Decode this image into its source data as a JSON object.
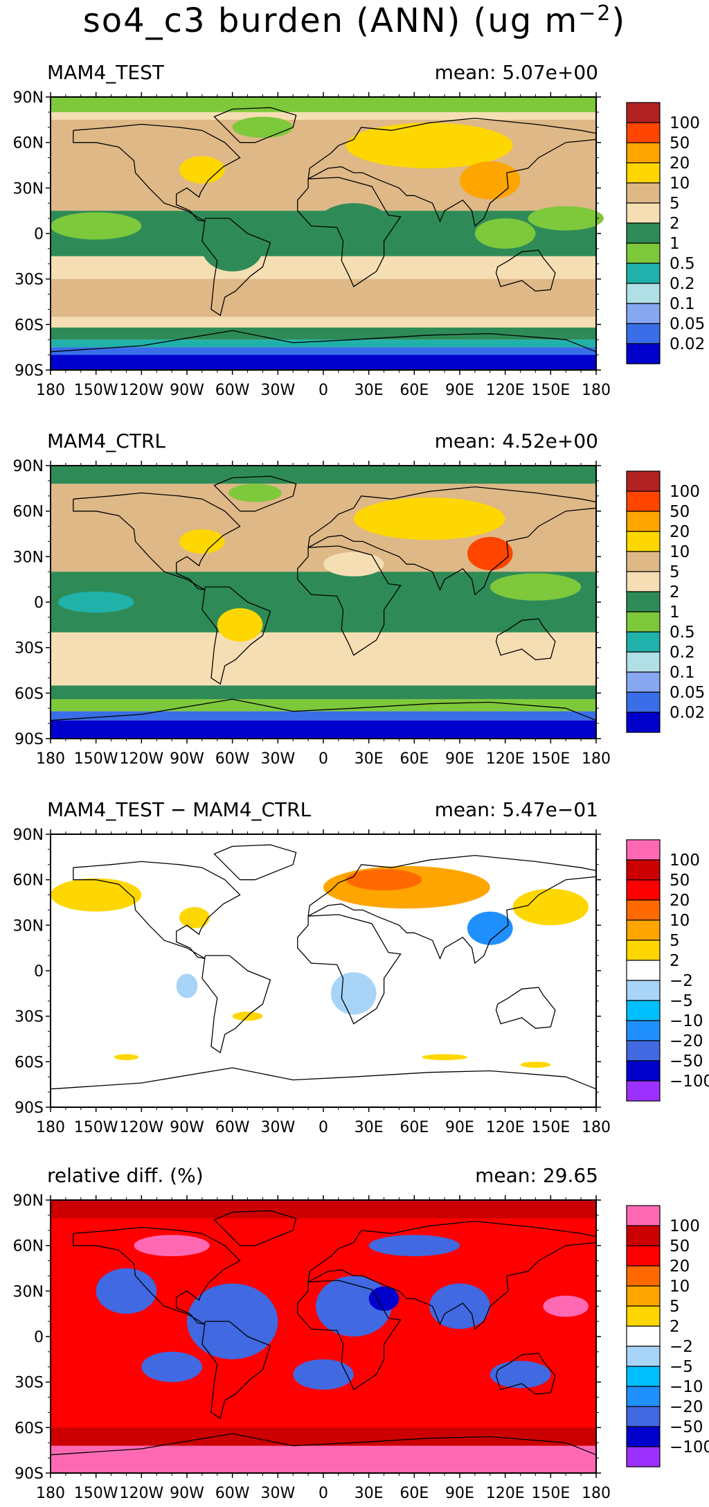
{
  "title": {
    "text": "so4_c3 burden (ANN) (ug m",
    "exponent": "−2",
    "suffix": ")"
  },
  "axes": {
    "lat_labels": [
      "90N",
      "60N",
      "30N",
      "0",
      "30S",
      "60S",
      "90S"
    ],
    "lon_labels": [
      "180",
      "150W",
      "120W",
      "90W",
      "60W",
      "30W",
      "0",
      "30E",
      "60E",
      "90E",
      "120E",
      "150E",
      "180"
    ]
  },
  "palettes": {
    "burden": {
      "labels": [
        "100",
        "50",
        "20",
        "10",
        "5",
        "2",
        "1",
        "0.5",
        "0.2",
        "0.1",
        "0.05",
        "0.02"
      ],
      "colors": [
        "#b22222",
        "#ff4500",
        "#ffa500",
        "#ffd700",
        "#deb887",
        "#f5deb3",
        "#2e8b57",
        "#7ec83c",
        "#20b2aa",
        "#b0e0e6",
        "#87a8f0",
        "#3a6ee8",
        "#0000cd"
      ]
    },
    "diff": {
      "labels": [
        "100",
        "50",
        "20",
        "10",
        "5",
        "2",
        "−2",
        "−5",
        "−10",
        "−20",
        "−50",
        "−100"
      ],
      "colors": [
        "#ff69b4",
        "#cc0000",
        "#ff0000",
        "#ff6a00",
        "#ffa500",
        "#ffd700",
        "#ffffff",
        "#a8d4f8",
        "#00bfff",
        "#2090ff",
        "#4169e1",
        "#0000cd",
        "#9b30ff"
      ]
    }
  },
  "panels": [
    {
      "id": "test",
      "title": "MAM4_TEST",
      "mean": "mean: 5.07e+00",
      "palette": "burden",
      "background": "#f5deb3",
      "bands": [
        {
          "lat": [
            90,
            80
          ],
          "color": "#7ec83c"
        },
        {
          "lat": [
            80,
            75
          ],
          "color": "#f5deb3"
        },
        {
          "lat": [
            75,
            15
          ],
          "color": "#deb887"
        },
        {
          "lat": [
            15,
            -15
          ],
          "color": "#2e8b57"
        },
        {
          "lat": [
            -15,
            -30
          ],
          "color": "#f5deb3"
        },
        {
          "lat": [
            -30,
            -55
          ],
          "color": "#deb887"
        },
        {
          "lat": [
            -55,
            -62
          ],
          "color": "#f5deb3"
        },
        {
          "lat": [
            -62,
            -70
          ],
          "color": "#2e8b57"
        },
        {
          "lat": [
            -70,
            -75
          ],
          "color": "#20b2aa"
        },
        {
          "lat": [
            -75,
            -80
          ],
          "color": "#3a6ee8"
        },
        {
          "lat": [
            -80,
            -90
          ],
          "color": "#0000cd"
        }
      ],
      "blobs": [
        {
          "lon": 70,
          "lat": 58,
          "w": 110,
          "h": 30,
          "color": "#ffd700"
        },
        {
          "lon": 110,
          "lat": 35,
          "w": 40,
          "h": 25,
          "color": "#ffa500"
        },
        {
          "lon": -80,
          "lat": 42,
          "w": 30,
          "h": 18,
          "color": "#ffd700"
        },
        {
          "lon": -40,
          "lat": 70,
          "w": 40,
          "h": 14,
          "color": "#7ec83c"
        },
        {
          "lon": 20,
          "lat": 5,
          "w": 50,
          "h": 30,
          "color": "#2e8b57"
        },
        {
          "lon": -60,
          "lat": -10,
          "w": 40,
          "h": 30,
          "color": "#2e8b57"
        },
        {
          "lon": 120,
          "lat": 0,
          "w": 40,
          "h": 20,
          "color": "#7ec83c"
        },
        {
          "lon": -150,
          "lat": 5,
          "w": 60,
          "h": 18,
          "color": "#7ec83c"
        },
        {
          "lon": 160,
          "lat": 10,
          "w": 50,
          "h": 16,
          "color": "#7ec83c"
        }
      ]
    },
    {
      "id": "ctrl",
      "title": "MAM4_CTRL",
      "mean": "mean: 4.52e+00",
      "palette": "burden",
      "background": "#f5deb3",
      "bands": [
        {
          "lat": [
            90,
            78
          ],
          "color": "#2e8b57"
        },
        {
          "lat": [
            78,
            20
          ],
          "color": "#deb887"
        },
        {
          "lat": [
            20,
            -20
          ],
          "color": "#2e8b57"
        },
        {
          "lat": [
            -20,
            -55
          ],
          "color": "#f5deb3"
        },
        {
          "lat": [
            -55,
            -64
          ],
          "color": "#2e8b57"
        },
        {
          "lat": [
            -64,
            -72
          ],
          "color": "#7ec83c"
        },
        {
          "lat": [
            -72,
            -78
          ],
          "color": "#3a6ee8"
        },
        {
          "lat": [
            -78,
            -90
          ],
          "color": "#0000cd"
        }
      ],
      "blobs": [
        {
          "lon": 70,
          "lat": 55,
          "w": 100,
          "h": 28,
          "color": "#ffd700"
        },
        {
          "lon": 110,
          "lat": 32,
          "w": 30,
          "h": 22,
          "color": "#ff4500"
        },
        {
          "lon": -80,
          "lat": 40,
          "w": 30,
          "h": 16,
          "color": "#ffd700"
        },
        {
          "lon": -45,
          "lat": 72,
          "w": 35,
          "h": 12,
          "color": "#7ec83c"
        },
        {
          "lon": 20,
          "lat": 25,
          "w": 40,
          "h": 16,
          "color": "#f5deb3"
        },
        {
          "lon": -55,
          "lat": -15,
          "w": 30,
          "h": 22,
          "color": "#ffd700"
        },
        {
          "lon": -150,
          "lat": 0,
          "w": 50,
          "h": 14,
          "color": "#20b2aa"
        },
        {
          "lon": 140,
          "lat": 10,
          "w": 60,
          "h": 18,
          "color": "#7ec83c"
        }
      ]
    },
    {
      "id": "diff",
      "title": "MAM4_TEST − MAM4_CTRL",
      "mean": "mean: 5.47e−01",
      "palette": "diff",
      "background": "#ffffff",
      "bands": [],
      "blobs": [
        {
          "lon": 55,
          "lat": 55,
          "w": 110,
          "h": 28,
          "color": "#ffa500"
        },
        {
          "lon": 40,
          "lat": 60,
          "w": 50,
          "h": 14,
          "color": "#ff6a00"
        },
        {
          "lon": -150,
          "lat": 50,
          "w": 60,
          "h": 22,
          "color": "#ffd700"
        },
        {
          "lon": 150,
          "lat": 42,
          "w": 50,
          "h": 24,
          "color": "#ffd700"
        },
        {
          "lon": 110,
          "lat": 28,
          "w": 30,
          "h": 22,
          "color": "#2090ff"
        },
        {
          "lon": -85,
          "lat": 35,
          "w": 20,
          "h": 14,
          "color": "#ffd700"
        },
        {
          "lon": -90,
          "lat": -10,
          "w": 14,
          "h": 16,
          "color": "#a8d4f8"
        },
        {
          "lon": -50,
          "lat": -30,
          "w": 20,
          "h": 6,
          "color": "#ffd700"
        },
        {
          "lon": 20,
          "lat": -15,
          "w": 30,
          "h": 28,
          "color": "#a8d4f8"
        },
        {
          "lon": -130,
          "lat": -57,
          "w": 16,
          "h": 4,
          "color": "#ffd700"
        },
        {
          "lon": 80,
          "lat": -57,
          "w": 30,
          "h": 4,
          "color": "#ffd700"
        },
        {
          "lon": 140,
          "lat": -62,
          "w": 20,
          "h": 4,
          "color": "#ffd700"
        }
      ]
    },
    {
      "id": "rel",
      "title": "relative diff. (%)",
      "mean": "mean: 29.65",
      "palette": "diff",
      "background": "#ff0000",
      "bands": [
        {
          "lat": [
            90,
            78
          ],
          "color": "#cc0000"
        },
        {
          "lat": [
            -60,
            -72
          ],
          "color": "#cc0000"
        },
        {
          "lat": [
            -72,
            -90
          ],
          "color": "#ff69b4"
        }
      ],
      "blobs": [
        {
          "lon": -60,
          "lat": 10,
          "w": 60,
          "h": 50,
          "color": "#4169e1"
        },
        {
          "lon": 20,
          "lat": 20,
          "w": 50,
          "h": 40,
          "color": "#4169e1"
        },
        {
          "lon": 40,
          "lat": 25,
          "w": 20,
          "h": 16,
          "color": "#0000cd"
        },
        {
          "lon": -130,
          "lat": 30,
          "w": 40,
          "h": 30,
          "color": "#4169e1"
        },
        {
          "lon": 90,
          "lat": 20,
          "w": 40,
          "h": 30,
          "color": "#4169e1"
        },
        {
          "lon": 0,
          "lat": -25,
          "w": 40,
          "h": 20,
          "color": "#4169e1"
        },
        {
          "lon": 130,
          "lat": -25,
          "w": 40,
          "h": 18,
          "color": "#4169e1"
        },
        {
          "lon": -100,
          "lat": -20,
          "w": 40,
          "h": 20,
          "color": "#4169e1"
        },
        {
          "lon": 60,
          "lat": 60,
          "w": 60,
          "h": 14,
          "color": "#4169e1"
        },
        {
          "lon": -100,
          "lat": 60,
          "w": 50,
          "h": 14,
          "color": "#ff69b4"
        },
        {
          "lon": 160,
          "lat": 20,
          "w": 30,
          "h": 14,
          "color": "#ff69b4"
        }
      ]
    }
  ]
}
